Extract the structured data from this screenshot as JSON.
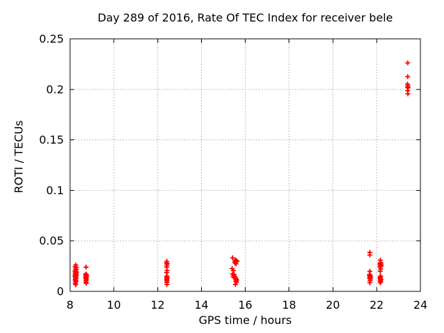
{
  "chart_data": {
    "type": "scatter",
    "title": "Day 289 of 2016, Rate Of TEC Index for receiver bele",
    "xlabel": "GPS time / hours",
    "ylabel": "ROTI / TECUs",
    "xlim": [
      8,
      24
    ],
    "ylim": [
      0,
      0.25
    ],
    "xtick_values": [
      8,
      10,
      12,
      14,
      16,
      18,
      20,
      22,
      24
    ],
    "xtick_labels": [
      "8",
      "10",
      "12",
      "14",
      "16",
      "18",
      "20",
      "22",
      "24"
    ],
    "ytick_values": [
      0,
      0.05,
      0.1,
      0.15,
      0.2,
      0.25
    ],
    "ytick_labels": [
      "0",
      "0.05",
      "0.1",
      "0.15",
      "0.2",
      "0.25"
    ],
    "grid": true,
    "legend": "none",
    "marker": "plus",
    "marker_color": "#ff0000",
    "grid_color": "#a8a8a8",
    "border_color": "#000000",
    "series": [
      {
        "name": "ROTI",
        "points": [
          [
            8.26,
            0.0262
          ],
          [
            8.23,
            0.0243
          ],
          [
            8.29,
            0.0238
          ],
          [
            8.25,
            0.0222
          ],
          [
            8.28,
            0.0214
          ],
          [
            8.22,
            0.0202
          ],
          [
            8.26,
            0.0196
          ],
          [
            8.3,
            0.019
          ],
          [
            8.23,
            0.0182
          ],
          [
            8.27,
            0.0176
          ],
          [
            8.24,
            0.0168
          ],
          [
            8.29,
            0.0161
          ],
          [
            8.22,
            0.0153
          ],
          [
            8.26,
            0.0148
          ],
          [
            8.24,
            0.014
          ],
          [
            8.28,
            0.0133
          ],
          [
            8.25,
            0.0124
          ],
          [
            8.23,
            0.0113
          ],
          [
            8.27,
            0.0106
          ],
          [
            8.25,
            0.0094
          ],
          [
            8.24,
            0.0079
          ],
          [
            8.26,
            0.0066
          ],
          [
            8.73,
            0.024
          ],
          [
            8.71,
            0.0172
          ],
          [
            8.75,
            0.0166
          ],
          [
            8.72,
            0.0157
          ],
          [
            8.75,
            0.0149
          ],
          [
            8.71,
            0.0142
          ],
          [
            8.74,
            0.0136
          ],
          [
            8.72,
            0.0127
          ],
          [
            8.75,
            0.0117
          ],
          [
            8.73,
            0.0107
          ],
          [
            8.72,
            0.0092
          ],
          [
            8.74,
            0.008
          ],
          [
            12.42,
            0.0298
          ],
          [
            12.4,
            0.0281
          ],
          [
            12.44,
            0.0274
          ],
          [
            12.42,
            0.0259
          ],
          [
            12.41,
            0.0241
          ],
          [
            12.43,
            0.0206
          ],
          [
            12.41,
            0.0186
          ],
          [
            12.43,
            0.0152
          ],
          [
            12.4,
            0.0141
          ],
          [
            12.44,
            0.0134
          ],
          [
            12.42,
            0.0125
          ],
          [
            12.41,
            0.0114
          ],
          [
            12.43,
            0.0104
          ],
          [
            12.42,
            0.0089
          ],
          [
            12.42,
            0.0069
          ],
          [
            15.42,
            0.0332
          ],
          [
            15.55,
            0.0311
          ],
          [
            15.6,
            0.0304
          ],
          [
            15.52,
            0.0296
          ],
          [
            15.57,
            0.029
          ],
          [
            15.63,
            0.0298
          ],
          [
            15.54,
            0.0281
          ],
          [
            15.58,
            0.0272
          ],
          [
            15.4,
            0.0226
          ],
          [
            15.46,
            0.0206
          ],
          [
            15.42,
            0.0172
          ],
          [
            15.5,
            0.0166
          ],
          [
            15.45,
            0.0152
          ],
          [
            15.53,
            0.0146
          ],
          [
            15.48,
            0.0136
          ],
          [
            15.56,
            0.0131
          ],
          [
            15.59,
            0.0121
          ],
          [
            15.61,
            0.0111
          ],
          [
            15.57,
            0.0101
          ],
          [
            15.6,
            0.009
          ],
          [
            15.55,
            0.0069
          ],
          [
            21.69,
            0.0385
          ],
          [
            21.69,
            0.036
          ],
          [
            21.69,
            0.0198
          ],
          [
            21.67,
            0.0166
          ],
          [
            21.71,
            0.0161
          ],
          [
            21.68,
            0.0151
          ],
          [
            21.72,
            0.0146
          ],
          [
            21.7,
            0.0137
          ],
          [
            21.68,
            0.0131
          ],
          [
            21.71,
            0.0122
          ],
          [
            21.7,
            0.0106
          ],
          [
            21.69,
            0.0086
          ],
          [
            22.17,
            0.0309
          ],
          [
            22.19,
            0.0286
          ],
          [
            22.15,
            0.0277
          ],
          [
            22.2,
            0.0271
          ],
          [
            22.16,
            0.0262
          ],
          [
            22.21,
            0.0256
          ],
          [
            22.17,
            0.0247
          ],
          [
            22.15,
            0.0241
          ],
          [
            22.18,
            0.0221
          ],
          [
            22.16,
            0.0199
          ],
          [
            22.19,
            0.0151
          ],
          [
            22.15,
            0.0141
          ],
          [
            22.18,
            0.0131
          ],
          [
            22.16,
            0.0121
          ],
          [
            22.2,
            0.0116
          ],
          [
            22.17,
            0.0106
          ],
          [
            22.19,
            0.0096
          ],
          [
            22.16,
            0.0086
          ],
          [
            23.42,
            0.2262
          ],
          [
            23.42,
            0.2126
          ],
          [
            23.41,
            0.2052
          ],
          [
            23.43,
            0.2036
          ],
          [
            23.41,
            0.2021
          ],
          [
            23.44,
            0.2016
          ],
          [
            23.42,
            0.1986
          ],
          [
            23.43,
            0.1956
          ]
        ]
      }
    ]
  }
}
